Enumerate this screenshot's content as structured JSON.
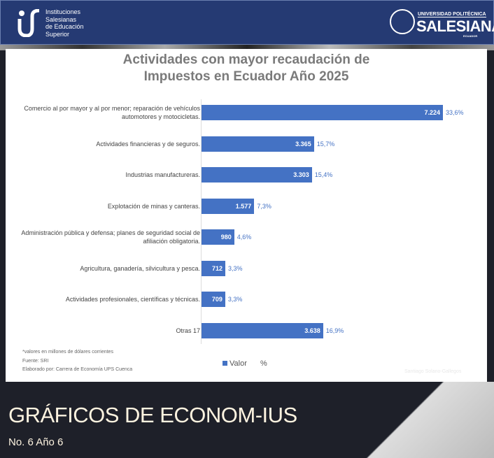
{
  "header": {
    "left_logo_text": [
      "Instituciones",
      "Salesianas",
      "de Educación",
      "Superior"
    ],
    "right_logo": {
      "line1": "UNIVERSIDAD POLITÉCNICA",
      "line2": "SALESIANA",
      "line3": "ECUADOR"
    }
  },
  "chart_data": {
    "type": "bar",
    "orientation": "horizontal",
    "title": "Actividades con mayor recaudación de Impuestos en Ecuador Año 2025",
    "categories": [
      "Comercio al por mayor y al por menor; reparación de vehículos automotores y motocicletas.",
      "Actividades financieras y de seguros.",
      "Industrias manufactureras.",
      "Explotación de minas y canteras.",
      "Administración pública y defensa; planes de seguridad social de afiliación obligatoria.",
      "Agricultura, ganadería, silvicultura y pesca.",
      "Actividades profesionales, científicas y técnicas.",
      "Otras 17"
    ],
    "series": [
      {
        "name": "Valor",
        "values": [
          7224,
          3365,
          3303,
          1577,
          980,
          712,
          709,
          3638
        ],
        "labels": [
          "7.224",
          "3.365",
          "3.303",
          "1.577",
          "980",
          "712",
          "709",
          "3.638"
        ],
        "color": "#4472c4"
      },
      {
        "name": "%",
        "values": [
          33.6,
          15.7,
          15.4,
          7.3,
          4.6,
          3.3,
          3.3,
          16.9
        ],
        "labels": [
          "33,6%",
          "15,7%",
          "15,4%",
          "7,3%",
          "4,6%",
          "3,3%",
          "3,3%",
          "16,9%"
        ]
      }
    ],
    "legend": [
      "Valor",
      "%"
    ],
    "legend_position": "bottom",
    "notes": [
      "*valores en millones de dólares corrientes",
      "Fuente: SRI",
      "Elaborado por: Carrera de Economía UPS Cuenca"
    ],
    "watermark": "Santiago Solano-Gallegos"
  },
  "footer": {
    "title": "GRÁFICOS DE ECONOM-IUS",
    "subtitle": "No. 6 Año 6"
  }
}
